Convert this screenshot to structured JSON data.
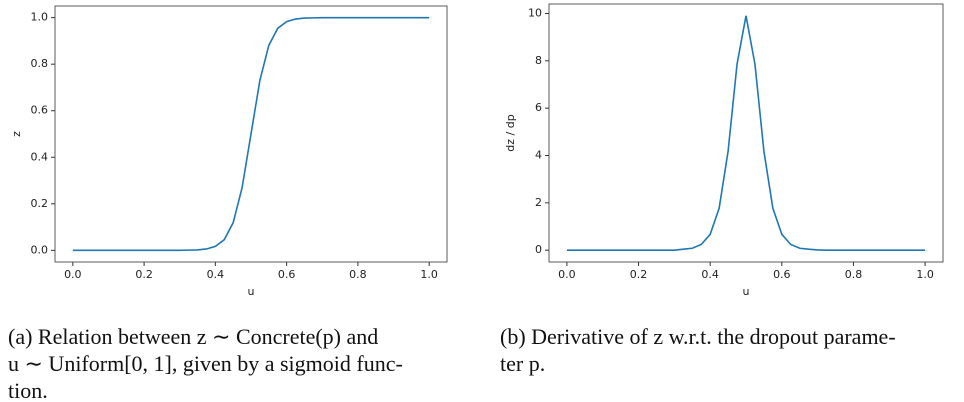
{
  "chart_data": [
    {
      "type": "line",
      "xlabel": "u",
      "ylabel": "z",
      "color": "#1f77b4",
      "x": [
        0,
        0.025,
        0.05,
        0.075,
        0.1,
        0.125,
        0.15,
        0.175,
        0.2,
        0.225,
        0.25,
        0.275,
        0.3,
        0.325,
        0.35,
        0.375,
        0.4,
        0.425,
        0.45,
        0.475,
        0.5,
        0.525,
        0.55,
        0.575,
        0.6,
        0.625,
        0.65,
        0.675,
        0.7,
        0.725,
        0.75,
        0.775,
        0.8,
        0.825,
        0.85,
        0.875,
        0.9,
        0.925,
        0.95,
        0.975,
        1
      ],
      "values": [
        0,
        0,
        0,
        0,
        0,
        0,
        0,
        0,
        0,
        0,
        0,
        0,
        0,
        0.001,
        0.002,
        0.006,
        0.017,
        0.046,
        0.119,
        0.269,
        0.5,
        0.731,
        0.881,
        0.954,
        0.983,
        0.994,
        0.998,
        0.999,
        1,
        1,
        1,
        1,
        1,
        1,
        1,
        1,
        1,
        1,
        1,
        1,
        1
      ],
      "xlim": [
        -0.05,
        1.05
      ],
      "ylim": [
        -0.05,
        1.05
      ],
      "xticks": [
        {
          "value": 0,
          "label": "0.0"
        },
        {
          "value": 0.2,
          "label": "0.2"
        },
        {
          "value": 0.4,
          "label": "0.4"
        },
        {
          "value": 0.6,
          "label": "0.6"
        },
        {
          "value": 0.8,
          "label": "0.8"
        },
        {
          "value": 1,
          "label": "1.0"
        }
      ],
      "yticks": [
        {
          "value": 0,
          "label": "0.0"
        },
        {
          "value": 0.2,
          "label": "0.2"
        },
        {
          "value": 0.4,
          "label": "0.4"
        },
        {
          "value": 0.6,
          "label": "0.6"
        },
        {
          "value": 0.8,
          "label": "0.8"
        },
        {
          "value": 1,
          "label": "1.0"
        }
      ],
      "grid": false,
      "caption_lines": [
        "(a) Relation between z ∼ Concrete(p) and",
        "u ∼ Uniform[0, 1], given by a sigmoid func-",
        "tion."
      ]
    },
    {
      "type": "line",
      "xlabel": "u",
      "ylabel": "dz / dp",
      "color": "#1f77b4",
      "x": [
        0,
        0.025,
        0.05,
        0.075,
        0.1,
        0.125,
        0.15,
        0.175,
        0.2,
        0.225,
        0.25,
        0.275,
        0.3,
        0.325,
        0.35,
        0.375,
        0.4,
        0.425,
        0.45,
        0.475,
        0.5,
        0.525,
        0.55,
        0.575,
        0.6,
        0.625,
        0.65,
        0.675,
        0.7,
        0.725,
        0.75,
        0.775,
        0.8,
        0.825,
        0.85,
        0.875,
        0.9,
        0.925,
        0.95,
        0.975,
        1
      ],
      "values": [
        0,
        0,
        0,
        0,
        0,
        0,
        0,
        0,
        0,
        0,
        0,
        0,
        0,
        0.04,
        0.08,
        0.24,
        0.67,
        1.77,
        4.18,
        7.86,
        9.9,
        7.86,
        4.18,
        1.77,
        0.67,
        0.24,
        0.08,
        0.04,
        0.01,
        0,
        0,
        0,
        0,
        0,
        0,
        0,
        0,
        0,
        0,
        0,
        0
      ],
      "xlim": [
        -0.05,
        1.05
      ],
      "ylim": [
        -0.5,
        10.4
      ],
      "xticks": [
        {
          "value": 0,
          "label": "0.0"
        },
        {
          "value": 0.2,
          "label": "0.2"
        },
        {
          "value": 0.4,
          "label": "0.4"
        },
        {
          "value": 0.6,
          "label": "0.6"
        },
        {
          "value": 0.8,
          "label": "0.8"
        },
        {
          "value": 1,
          "label": "1.0"
        }
      ],
      "yticks": [
        0,
        2,
        4,
        6,
        8,
        10
      ],
      "grid": false,
      "caption_lines": [
        "(b) Derivative of z w.r.t. the dropout parame-",
        "ter p."
      ]
    }
  ]
}
